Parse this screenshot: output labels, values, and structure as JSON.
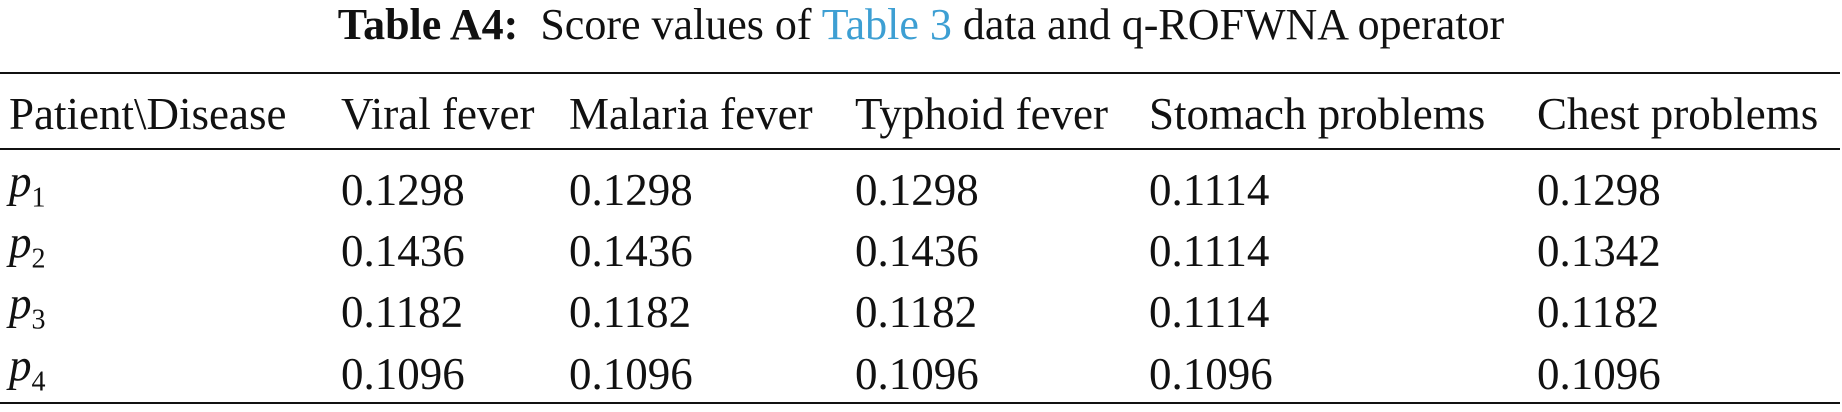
{
  "caption": {
    "label": "Table A4:",
    "text_before": "Score values of",
    "link": "Table 3",
    "text_after": "data and q-ROFWNA operator"
  },
  "table": {
    "header": [
      "Patient\\Disease",
      "Viral fever",
      "Malaria fever",
      "Typhoid fever",
      "Stomach problems",
      "Chest problems"
    ],
    "rows": [
      [
        {
          "symbol": "p",
          "subscript": "1"
        },
        "0.1298",
        "0.1298",
        "0.1298",
        "0.1114",
        "0.1298"
      ],
      [
        {
          "symbol": "p",
          "subscript": "2"
        },
        "0.1436",
        "0.1436",
        "0.1436",
        "0.1114",
        "0.1342"
      ],
      [
        {
          "symbol": "p",
          "subscript": "3"
        },
        "0.1182",
        "0.1182",
        "0.1182",
        "0.1114",
        "0.1182"
      ],
      [
        {
          "symbol": "p",
          "subscript": "4"
        },
        "0.1096",
        "0.1096",
        "0.1096",
        "0.1096",
        "0.1096"
      ]
    ]
  }
}
